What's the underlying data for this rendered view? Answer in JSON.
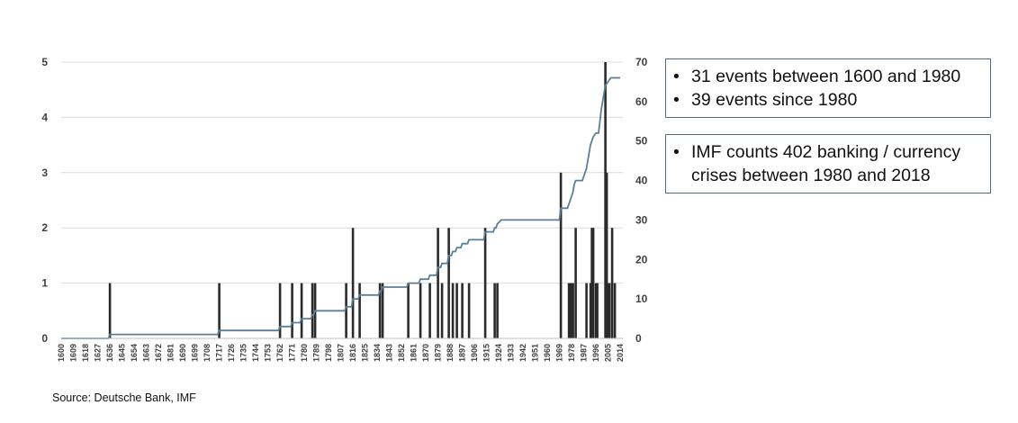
{
  "chart_data": {
    "type": "bar+line",
    "series": [
      {
        "type": "bar",
        "axis": "left",
        "color": "#2b2b2b",
        "points": [
          [
            1636,
            1
          ],
          [
            1717,
            1
          ],
          [
            1762,
            1
          ],
          [
            1771,
            1
          ],
          [
            1778,
            1
          ],
          [
            1786,
            1
          ],
          [
            1788,
            1
          ],
          [
            1811,
            1
          ],
          [
            1816,
            2
          ],
          [
            1821,
            1
          ],
          [
            1836,
            1
          ],
          [
            1838,
            1
          ],
          [
            1857,
            1
          ],
          [
            1866,
            1
          ],
          [
            1873,
            1
          ],
          [
            1879,
            2
          ],
          [
            1882,
            1
          ],
          [
            1887,
            2
          ],
          [
            1890,
            1
          ],
          [
            1893,
            1
          ],
          [
            1897,
            1
          ],
          [
            1902,
            1
          ],
          [
            1914,
            2
          ],
          [
            1921,
            1
          ],
          [
            1923,
            1
          ],
          [
            1970,
            3
          ],
          [
            1976,
            1
          ],
          [
            1977,
            1
          ],
          [
            1978,
            1
          ],
          [
            1979,
            1
          ],
          [
            1981,
            2
          ],
          [
            1989,
            1
          ],
          [
            1992,
            1
          ],
          [
            1993,
            2
          ],
          [
            1994,
            2
          ],
          [
            1996,
            1
          ],
          [
            1997,
            1
          ],
          [
            2003,
            5
          ],
          [
            2004,
            3
          ],
          [
            2005,
            1
          ],
          [
            2006,
            1
          ],
          [
            2008,
            2
          ],
          [
            2010,
            1
          ]
        ]
      },
      {
        "type": "line",
        "axis": "right",
        "color": "#5d7f96",
        "points": [
          [
            1600,
            0
          ],
          [
            1635,
            0
          ],
          [
            1636,
            1
          ],
          [
            1716,
            1
          ],
          [
            1717,
            2
          ],
          [
            1761,
            2
          ],
          [
            1762,
            3
          ],
          [
            1770,
            3
          ],
          [
            1771,
            4
          ],
          [
            1777,
            4
          ],
          [
            1778,
            5
          ],
          [
            1785,
            5
          ],
          [
            1786,
            6
          ],
          [
            1787,
            6
          ],
          [
            1788,
            7
          ],
          [
            1810,
            7
          ],
          [
            1811,
            8
          ],
          [
            1815,
            8
          ],
          [
            1816,
            10
          ],
          [
            1820,
            10
          ],
          [
            1821,
            11
          ],
          [
            1835,
            11
          ],
          [
            1836,
            12
          ],
          [
            1837,
            12
          ],
          [
            1838,
            13
          ],
          [
            1856,
            13
          ],
          [
            1857,
            14
          ],
          [
            1865,
            14
          ],
          [
            1866,
            15
          ],
          [
            1872,
            15
          ],
          [
            1873,
            16
          ],
          [
            1878,
            16
          ],
          [
            1879,
            18
          ],
          [
            1881,
            18
          ],
          [
            1882,
            19
          ],
          [
            1886,
            19
          ],
          [
            1887,
            21
          ],
          [
            1889,
            21
          ],
          [
            1890,
            22
          ],
          [
            1892,
            22
          ],
          [
            1893,
            23
          ],
          [
            1896,
            23
          ],
          [
            1897,
            24
          ],
          [
            1901,
            24
          ],
          [
            1902,
            25
          ],
          [
            1913,
            25
          ],
          [
            1914,
            27
          ],
          [
            1920,
            27
          ],
          [
            1921,
            28
          ],
          [
            1922,
            28
          ],
          [
            1923,
            29
          ],
          [
            1926,
            30
          ],
          [
            1969,
            30
          ],
          [
            1970,
            33
          ],
          [
            1975,
            33
          ],
          [
            1976,
            34
          ],
          [
            1977,
            35
          ],
          [
            1978,
            36
          ],
          [
            1979,
            37
          ],
          [
            1980,
            39
          ],
          [
            1981,
            40
          ],
          [
            1986,
            40
          ],
          [
            1988,
            42
          ],
          [
            1989,
            43
          ],
          [
            1990,
            45
          ],
          [
            1991,
            47
          ],
          [
            1992,
            49
          ],
          [
            1993,
            50
          ],
          [
            1994,
            51
          ],
          [
            1996,
            52
          ],
          [
            1998,
            52
          ],
          [
            1999,
            55
          ],
          [
            2000,
            58
          ],
          [
            2001,
            60
          ],
          [
            2002,
            62
          ],
          [
            2003,
            64
          ],
          [
            2005,
            65
          ],
          [
            2007,
            66
          ],
          [
            2014,
            66
          ]
        ]
      }
    ],
    "x_ticks": [
      "1600",
      "1609",
      "1618",
      "1627",
      "1636",
      "1645",
      "1654",
      "1663",
      "1672",
      "1681",
      "1690",
      "1699",
      "1708",
      "1717",
      "1726",
      "1735",
      "1744",
      "1753",
      "1762",
      "1771",
      "1780",
      "1789",
      "1798",
      "1807",
      "1816",
      "1825",
      "1834",
      "1843",
      "1852",
      "1861",
      "1870",
      "1879",
      "1888",
      "1897",
      "1906",
      "1915",
      "1924",
      "1933",
      "1942",
      "1951",
      "1960",
      "1969",
      "1978",
      "1987",
      "1996",
      "2005",
      "2014"
    ],
    "xlim": [
      1600,
      2016
    ],
    "y_left": {
      "ticks": [
        "0",
        "1",
        "2",
        "3",
        "4",
        "5"
      ],
      "lim": [
        0,
        5
      ]
    },
    "y_right": {
      "ticks": [
        "0",
        "10",
        "20",
        "30",
        "40",
        "50",
        "60",
        "70"
      ],
      "lim": [
        0,
        70
      ]
    },
    "grid": "horizontal",
    "title": "",
    "xlabel": "",
    "ylabel": ""
  },
  "notes": {
    "box1": [
      "31 events between 1600 and 1980",
      "39 events since 1980"
    ],
    "box2_line1": "IMF counts 402 banking / currency",
    "box2_line2": "crises between 1980 and 2018",
    "bullet": "•"
  },
  "source": "Source: Deutsche Bank, IMF"
}
